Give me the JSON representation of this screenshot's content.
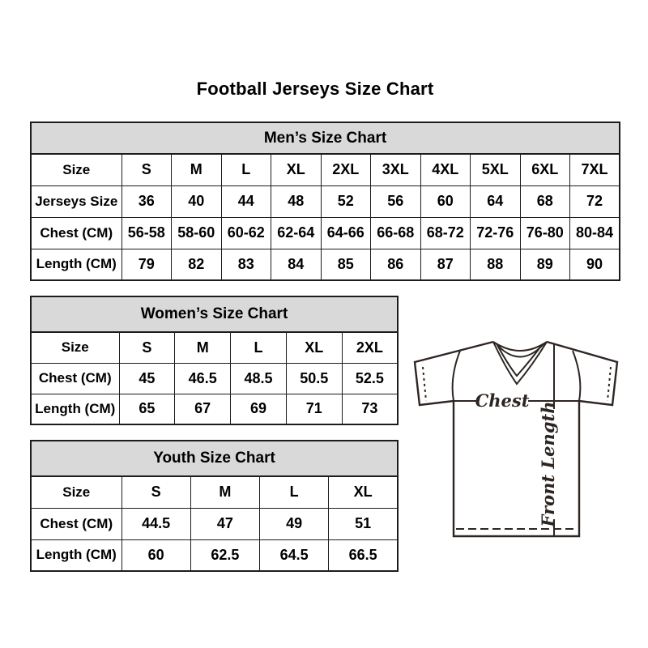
{
  "title": "Football Jerseys Size Chart",
  "chart_data": [
    {
      "type": "table",
      "title": "Men’s Size Chart",
      "rows": [
        {
          "label": "Size",
          "values": [
            "S",
            "M",
            "L",
            "XL",
            "2XL",
            "3XL",
            "4XL",
            "5XL",
            "6XL",
            "7XL"
          ]
        },
        {
          "label": "Jerseys Size",
          "values": [
            "36",
            "40",
            "44",
            "48",
            "52",
            "56",
            "60",
            "64",
            "68",
            "72"
          ]
        },
        {
          "label": "Chest (CM)",
          "values": [
            "56-58",
            "58-60",
            "60-62",
            "62-64",
            "64-66",
            "66-68",
            "68-72",
            "72-76",
            "76-80",
            "80-84"
          ]
        },
        {
          "label": "Length (CM)",
          "values": [
            "79",
            "82",
            "83",
            "84",
            "85",
            "86",
            "87",
            "88",
            "89",
            "90"
          ]
        }
      ]
    },
    {
      "type": "table",
      "title": "Women’s Size Chart",
      "rows": [
        {
          "label": "Size",
          "values": [
            "S",
            "M",
            "L",
            "XL",
            "2XL"
          ]
        },
        {
          "label": "Chest (CM)",
          "values": [
            "45",
            "46.5",
            "48.5",
            "50.5",
            "52.5"
          ]
        },
        {
          "label": "Length (CM)",
          "values": [
            "65",
            "67",
            "69",
            "71",
            "73"
          ]
        }
      ]
    },
    {
      "type": "table",
      "title": "Youth Size Chart",
      "rows": [
        {
          "label": "Size",
          "values": [
            "S",
            "M",
            "L",
            "XL"
          ]
        },
        {
          "label": "Chest (CM)",
          "values": [
            "44.5",
            "47",
            "49",
            "51"
          ]
        },
        {
          "label": "Length (CM)",
          "values": [
            "60",
            "62.5",
            "64.5",
            "66.5"
          ]
        }
      ]
    }
  ],
  "jersey_diagram": {
    "chest_label": "Chest",
    "front_length_label": "Front Length"
  },
  "colors": {
    "table_header_bg": "#d9d9d9",
    "border": "#1c1c1c",
    "jersey_line": "#2d2521",
    "text": "#000000",
    "background": "#ffffff"
  }
}
